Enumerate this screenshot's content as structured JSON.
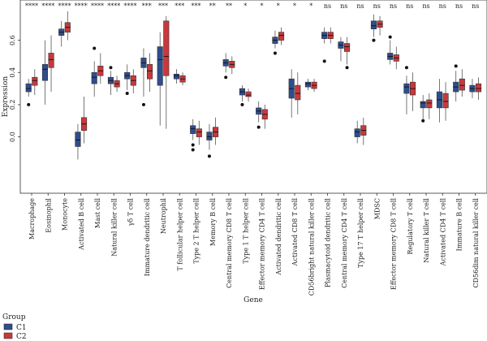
{
  "chart_data": {
    "type": "boxplot",
    "xlabel": "Gene",
    "ylabel": "Expression",
    "ylim": [
      -0.35,
      0.85
    ],
    "yticks": [
      0.0,
      0.2,
      0.4,
      0.6
    ],
    "ytick_labels": [
      "0.0",
      "0.2",
      "0.4",
      "0.6"
    ],
    "legend": {
      "title": "Group",
      "placement": "bottom-left"
    },
    "series": [
      {
        "name": "C1",
        "color": "#2f4d8e"
      },
      {
        "name": "C2",
        "color": "#c8383c"
      }
    ],
    "categories": [
      "Macrophage",
      "Eosinophil",
      "Monocyte",
      "Activated B cell",
      "Mast cell",
      "Natural killer cell",
      "γδ T cell",
      "Immature dendritic cell",
      "Neutrophil",
      "T follicular helper cell",
      "Type 2 T helper cell",
      "Memory B cell",
      "Central memory CD8 T cell",
      "Type 1 T helper cell",
      "Effector memory CD4 T cell",
      "Activated dendritic cell",
      "Activated CD8 T cell",
      "CD56bright natural killer cell",
      "Plasmacytoid dendritic cell",
      "Central memory CD4 T cell",
      "Type 17 T helper cell",
      "MDSC",
      "Effector memory CD8 T cell",
      "Regulatory T cell",
      "Natural killer T cell",
      "Activated CD4 T cell",
      "Immature B cell",
      "CD56dim natural killer cell"
    ],
    "significance": [
      "****",
      "****",
      "****",
      "****",
      "****",
      "****",
      "****",
      "***",
      "***",
      "***",
      "***",
      "**",
      "**",
      "*",
      "*",
      "*",
      "*",
      "*",
      "ns",
      "ns",
      "ns",
      "ns",
      "ns",
      "ns",
      "ns",
      "ns",
      "ns",
      "ns"
    ],
    "boxes": [
      {
        "c1": [
          0.25,
          0.28,
          0.3,
          0.33,
          0.36,
          [
            0.2
          ]
        ],
        "c2": [
          0.26,
          0.32,
          0.35,
          0.37,
          0.42,
          []
        ]
      },
      {
        "c1": [
          0.2,
          0.35,
          0.42,
          0.45,
          0.6,
          []
        ],
        "c2": [
          0.28,
          0.43,
          0.48,
          0.52,
          0.63,
          []
        ]
      },
      {
        "c1": [
          0.56,
          0.63,
          0.65,
          0.67,
          0.72,
          []
        ],
        "c2": [
          0.6,
          0.65,
          0.68,
          0.71,
          0.78,
          []
        ]
      },
      {
        "c1": [
          -0.14,
          -0.06,
          -0.02,
          0.03,
          0.08,
          []
        ],
        "c2": [
          -0.04,
          0.04,
          0.08,
          0.12,
          0.25,
          []
        ]
      },
      {
        "c1": [
          0.25,
          0.33,
          0.37,
          0.4,
          0.47,
          [
            0.55
          ]
        ],
        "c2": [
          0.33,
          0.38,
          0.41,
          0.44,
          0.52,
          []
        ]
      },
      {
        "c1": [
          0.26,
          0.33,
          0.35,
          0.37,
          0.41,
          [
            0.43
          ]
        ],
        "c2": [
          0.28,
          0.31,
          0.33,
          0.35,
          0.38,
          []
        ]
      },
      {
        "c1": [
          0.29,
          0.36,
          0.38,
          0.4,
          0.45,
          [
            0.27
          ]
        ],
        "c2": [
          0.27,
          0.32,
          0.35,
          0.38,
          0.42,
          []
        ]
      },
      {
        "c1": [
          0.25,
          0.43,
          0.46,
          0.49,
          0.55,
          [
            0.2
          ]
        ],
        "c2": [
          0.28,
          0.36,
          0.41,
          0.45,
          0.52,
          []
        ]
      },
      {
        "c1": [
          0.07,
          0.32,
          0.48,
          0.56,
          0.65,
          []
        ],
        "c2": [
          0.05,
          0.38,
          0.5,
          0.72,
          0.75,
          []
        ]
      },
      {
        "c1": [
          0.33,
          0.36,
          0.38,
          0.39,
          0.42,
          []
        ],
        "c2": [
          0.32,
          0.34,
          0.36,
          0.38,
          0.4,
          []
        ]
      },
      {
        "c1": [
          -0.02,
          0.02,
          0.05,
          0.07,
          0.11,
          [
            -0.05,
            -0.08
          ]
        ],
        "c2": [
          -0.05,
          0.0,
          0.03,
          0.05,
          0.1,
          []
        ]
      },
      {
        "c1": [
          -0.08,
          -0.02,
          0.0,
          0.03,
          0.08,
          [
            -0.12
          ]
        ],
        "c2": [
          -0.05,
          0.0,
          0.03,
          0.06,
          0.12,
          []
        ]
      },
      {
        "c1": [
          0.4,
          0.44,
          0.46,
          0.48,
          0.52,
          [
            0.37
          ]
        ],
        "c2": [
          0.39,
          0.43,
          0.45,
          0.47,
          0.5,
          []
        ]
      },
      {
        "c1": [
          0.22,
          0.26,
          0.28,
          0.3,
          0.32,
          [
            0.2
          ]
        ],
        "c2": [
          0.22,
          0.25,
          0.26,
          0.28,
          0.3,
          []
        ]
      },
      {
        "c1": [
          0.09,
          0.14,
          0.16,
          0.18,
          0.22,
          [
            0.06
          ]
        ],
        "c2": [
          0.05,
          0.11,
          0.14,
          0.17,
          0.2,
          []
        ]
      },
      {
        "c1": [
          0.55,
          0.58,
          0.6,
          0.62,
          0.66,
          [
            0.52
          ]
        ],
        "c2": [
          0.57,
          0.6,
          0.63,
          0.65,
          0.68,
          []
        ]
      },
      {
        "c1": [
          0.12,
          0.24,
          0.3,
          0.36,
          0.42,
          []
        ],
        "c2": [
          0.14,
          0.23,
          0.27,
          0.32,
          0.4,
          []
        ]
      },
      {
        "c1": [
          0.29,
          0.31,
          0.33,
          0.34,
          0.36,
          []
        ],
        "c2": [
          0.28,
          0.3,
          0.32,
          0.34,
          0.36,
          []
        ]
      },
      {
        "c1": [
          0.58,
          0.61,
          0.63,
          0.65,
          0.68,
          [
            0.47
          ]
        ],
        "c2": [
          0.58,
          0.61,
          0.63,
          0.65,
          0.68,
          []
        ]
      },
      {
        "c1": [
          0.47,
          0.55,
          0.57,
          0.59,
          0.62,
          []
        ],
        "c2": [
          0.45,
          0.53,
          0.56,
          0.58,
          0.62,
          [
            0.43
          ]
        ]
      },
      {
        "c1": [
          -0.04,
          0.0,
          0.03,
          0.05,
          0.1,
          []
        ],
        "c2": [
          -0.05,
          0.01,
          0.04,
          0.07,
          0.12,
          []
        ]
      },
      {
        "c1": [
          0.62,
          0.67,
          0.69,
          0.72,
          0.76,
          [
            0.6
          ]
        ],
        "c2": [
          0.63,
          0.68,
          0.7,
          0.72,
          0.75,
          []
        ]
      },
      {
        "c1": [
          0.45,
          0.48,
          0.5,
          0.52,
          0.6,
          [
            0.62
          ]
        ],
        "c2": [
          0.42,
          0.47,
          0.49,
          0.51,
          0.56,
          []
        ]
      },
      {
        "c1": [
          0.14,
          0.27,
          0.31,
          0.33,
          0.38,
          [
            0.43
          ]
        ],
        "c2": [
          0.16,
          0.26,
          0.3,
          0.34,
          0.4,
          []
        ]
      },
      {
        "c1": [
          0.11,
          0.18,
          0.21,
          0.22,
          0.26,
          [
            0.1
          ]
        ],
        "c2": [
          0.11,
          0.18,
          0.21,
          0.23,
          0.27,
          []
        ]
      },
      {
        "c1": [
          0.09,
          0.18,
          0.23,
          0.28,
          0.36,
          []
        ],
        "c2": [
          0.1,
          0.18,
          0.22,
          0.27,
          0.34,
          []
        ]
      },
      {
        "c1": [
          0.22,
          0.28,
          0.31,
          0.34,
          0.41,
          [
            0.44
          ]
        ],
        "c2": [
          0.25,
          0.29,
          0.32,
          0.36,
          0.42,
          []
        ]
      },
      {
        "c1": [
          0.24,
          0.28,
          0.3,
          0.32,
          0.36,
          []
        ],
        "c2": [
          0.23,
          0.28,
          0.3,
          0.33,
          0.37,
          []
        ]
      }
    ]
  }
}
